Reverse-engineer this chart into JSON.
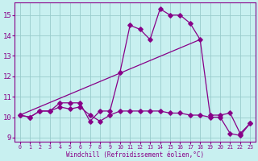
{
  "xlabel": "Windchill (Refroidissement éolien,°C)",
  "background_color": "#c8f0f0",
  "line_color": "#880088",
  "grid_color": "#99cccc",
  "xlim": [
    -0.5,
    23.5
  ],
  "ylim": [
    8.8,
    15.6
  ],
  "xticks": [
    0,
    1,
    2,
    3,
    4,
    5,
    6,
    7,
    8,
    9,
    10,
    11,
    12,
    13,
    14,
    15,
    16,
    17,
    18,
    19,
    20,
    21,
    22,
    23
  ],
  "yticks": [
    9,
    10,
    11,
    12,
    13,
    14,
    15
  ],
  "series1_x": [
    0,
    1,
    2,
    3,
    4,
    5,
    6,
    7,
    8,
    9,
    10,
    11,
    12,
    13,
    14,
    15,
    16,
    17,
    18,
    19,
    20,
    21,
    22,
    23
  ],
  "series1_y": [
    10.1,
    10.0,
    10.3,
    10.3,
    10.7,
    10.7,
    10.7,
    9.8,
    10.3,
    10.3,
    12.2,
    14.5,
    14.3,
    13.8,
    15.3,
    15.0,
    15.0,
    14.6,
    13.8,
    10.1,
    10.1,
    10.2,
    9.2,
    9.7
  ],
  "series2_x": [
    0,
    1,
    2,
    3,
    4,
    5,
    6,
    7,
    8,
    9,
    10,
    11,
    12,
    13,
    14,
    15,
    16,
    17,
    18,
    19,
    20,
    21,
    22,
    23
  ],
  "series2_y": [
    10.1,
    10.0,
    10.3,
    10.3,
    10.5,
    10.4,
    10.5,
    10.1,
    9.8,
    10.1,
    10.3,
    10.3,
    10.3,
    10.3,
    10.3,
    10.2,
    10.2,
    10.1,
    10.1,
    10.0,
    10.0,
    9.2,
    9.1,
    9.7
  ],
  "series3_x": [
    0,
    18
  ],
  "series3_y": [
    10.1,
    13.8
  ]
}
